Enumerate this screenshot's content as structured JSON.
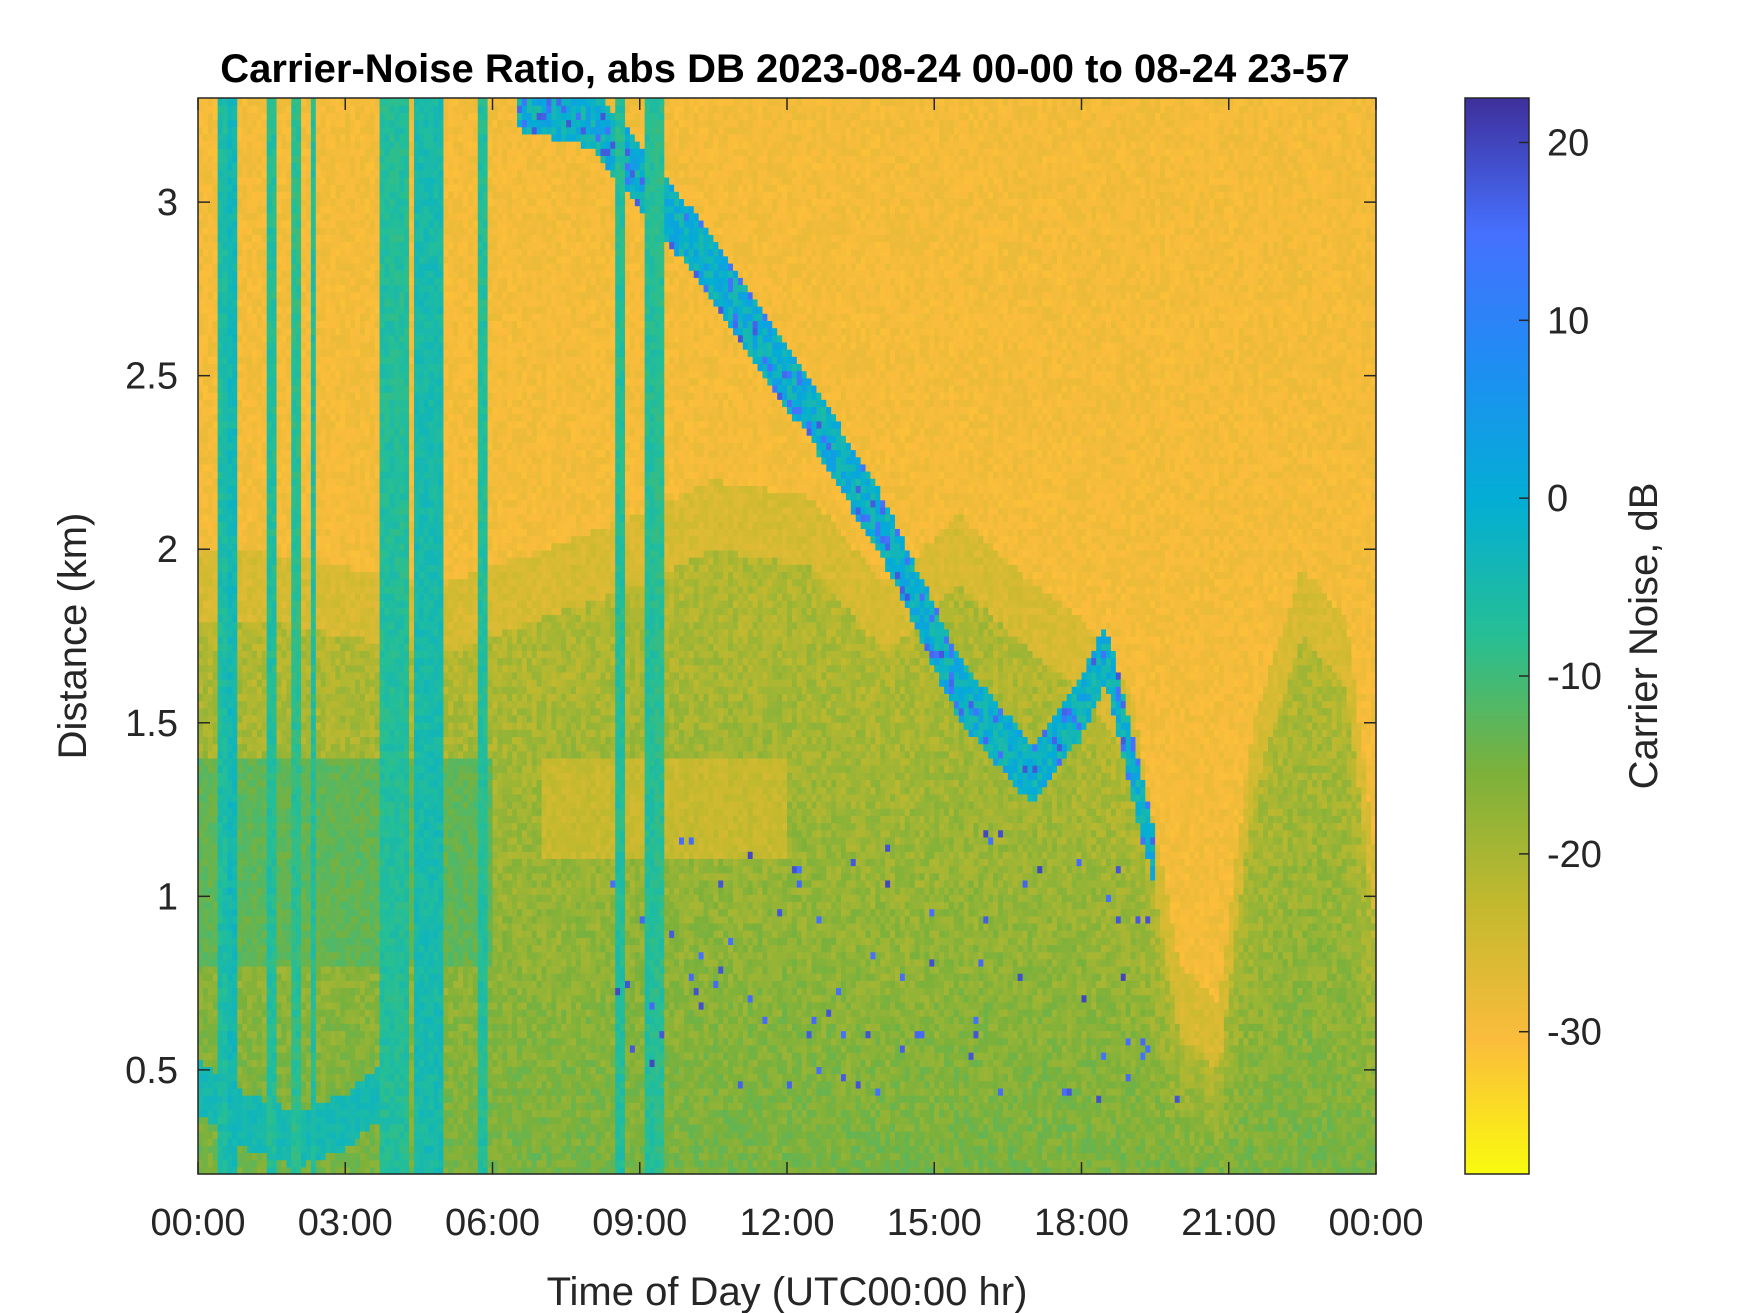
{
  "chart_data": {
    "type": "heatmap",
    "title": "Carrier-Noise Ratio, abs DB 2023-08-24 00-00 to 08-24 23-57",
    "xlabel": "Time of Day (UTC00:00 hr)",
    "ylabel": "Distance (km)",
    "colorbar_label": "Carrier Noise, dB",
    "x_range_hours": [
      0,
      24
    ],
    "y_range_km": [
      0.2,
      3.3
    ],
    "c_range_db": [
      -38,
      22.5
    ],
    "x_ticks": [
      {
        "hour": 0,
        "label": "00:00"
      },
      {
        "hour": 3,
        "label": "03:00"
      },
      {
        "hour": 6,
        "label": "06:00"
      },
      {
        "hour": 9,
        "label": "09:00"
      },
      {
        "hour": 12,
        "label": "12:00"
      },
      {
        "hour": 15,
        "label": "15:00"
      },
      {
        "hour": 18,
        "label": "18:00"
      },
      {
        "hour": 21,
        "label": "21:00"
      },
      {
        "hour": 24,
        "label": "00:00"
      }
    ],
    "y_ticks": [
      {
        "value": 0.5,
        "label": "0.5"
      },
      {
        "value": 1,
        "label": "1"
      },
      {
        "value": 1.5,
        "label": "1.5"
      },
      {
        "value": 2,
        "label": "2"
      },
      {
        "value": 2.5,
        "label": "2.5"
      },
      {
        "value": 3,
        "label": "3"
      }
    ],
    "c_ticks": [
      {
        "value": 20,
        "label": "20"
      },
      {
        "value": 10,
        "label": "10"
      },
      {
        "value": 0,
        "label": "0"
      },
      {
        "value": -10,
        "label": "-10"
      },
      {
        "value": -20,
        "label": "-20"
      },
      {
        "value": -30,
        "label": "-30"
      }
    ],
    "colormap": "parula",
    "colormap_stops": [
      "#f9fb0e",
      "#fbbc3c",
      "#c3b92e",
      "#7bb13b",
      "#26bf94",
      "#03aed4",
      "#1e8ef3",
      "#4670fe",
      "#3e2f9b"
    ],
    "layer_top_km": [
      {
        "hour": 0.0,
        "km": 1.8
      },
      {
        "hour": 1.0,
        "km": 1.8
      },
      {
        "hour": 3.0,
        "km": 1.75
      },
      {
        "hour": 5.0,
        "km": 1.7
      },
      {
        "hour": 7.0,
        "km": 1.8
      },
      {
        "hour": 9.0,
        "km": 1.9
      },
      {
        "hour": 10.5,
        "km": 2.0
      },
      {
        "hour": 12.5,
        "km": 1.95
      },
      {
        "hour": 14.0,
        "km": 1.7
      },
      {
        "hour": 15.5,
        "km": 1.9
      },
      {
        "hour": 17.0,
        "km": 1.7
      },
      {
        "hour": 18.0,
        "km": 1.6
      },
      {
        "hour": 19.0,
        "km": 1.4
      },
      {
        "hour": 20.0,
        "km": 0.6
      },
      {
        "hour": 20.8,
        "km": 0.5
      },
      {
        "hour": 21.5,
        "km": 1.3
      },
      {
        "hour": 22.5,
        "km": 1.75
      },
      {
        "hour": 23.4,
        "km": 1.6
      },
      {
        "hour": 24.0,
        "km": 0.9
      }
    ],
    "cloud_band": [
      {
        "hour": 6.5,
        "km": 3.3
      },
      {
        "hour": 8.0,
        "km": 3.25
      },
      {
        "hour": 10.0,
        "km": 2.9
      },
      {
        "hour": 11.0,
        "km": 2.7
      },
      {
        "hour": 12.5,
        "km": 2.4
      },
      {
        "hour": 14.0,
        "km": 2.05
      },
      {
        "hour": 15.5,
        "km": 1.6
      },
      {
        "hour": 17.0,
        "km": 1.35
      },
      {
        "hour": 18.0,
        "km": 1.55
      },
      {
        "hour": 18.5,
        "km": 1.7
      },
      {
        "hour": 19.5,
        "km": 1.1
      }
    ],
    "surface_band_0_4h": [
      {
        "hour": 0.0,
        "km": 0.45
      },
      {
        "hour": 1.0,
        "km": 0.35
      },
      {
        "hour": 2.0,
        "km": 0.3
      },
      {
        "hour": 3.0,
        "km": 0.35
      },
      {
        "hour": 3.8,
        "km": 0.45
      }
    ],
    "vertical_streaks": [
      {
        "hour": 0.5,
        "width_h": 0.15,
        "db": -6
      },
      {
        "hour": 0.75,
        "width_h": 0.1,
        "db": -4
      },
      {
        "hour": 1.55,
        "width_h": 0.1,
        "db": -7
      },
      {
        "hour": 2.0,
        "width_h": 0.12,
        "db": -8
      },
      {
        "hour": 2.35,
        "width_h": 0.1,
        "db": -7
      },
      {
        "hour": 4.0,
        "width_h": 0.4,
        "db": -7
      },
      {
        "hour": 4.7,
        "width_h": 0.45,
        "db": -5
      },
      {
        "hour": 5.8,
        "width_h": 0.12,
        "db": -7
      },
      {
        "hour": 8.6,
        "width_h": 0.08,
        "db": -7
      },
      {
        "hour": 9.2,
        "width_h": 0.08,
        "db": -7
      },
      {
        "hour": 9.4,
        "width_h": 0.08,
        "db": -8
      }
    ]
  }
}
